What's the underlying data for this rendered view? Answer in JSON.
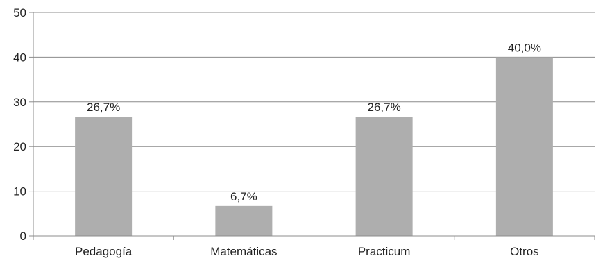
{
  "chart_data": {
    "type": "bar",
    "categories": [
      "Pedagogía",
      "Matemáticas",
      "Practicum",
      "Otros"
    ],
    "values": [
      26.7,
      6.7,
      26.7,
      40.0
    ],
    "data_labels": [
      "26,7%",
      "6,7%",
      "26,7%",
      "40,0%"
    ],
    "y_ticks": [
      "0",
      "10",
      "20",
      "30",
      "40",
      "50"
    ],
    "ylim": [
      0,
      50
    ],
    "y_tick_step": 10,
    "grid": true,
    "legend": "none",
    "title": "",
    "xlabel": "",
    "ylabel": "",
    "colors": {
      "bar": "#aeaeae",
      "grid": "#8c8c8c",
      "axis": "#8c8c8c",
      "text": "#222222"
    }
  }
}
